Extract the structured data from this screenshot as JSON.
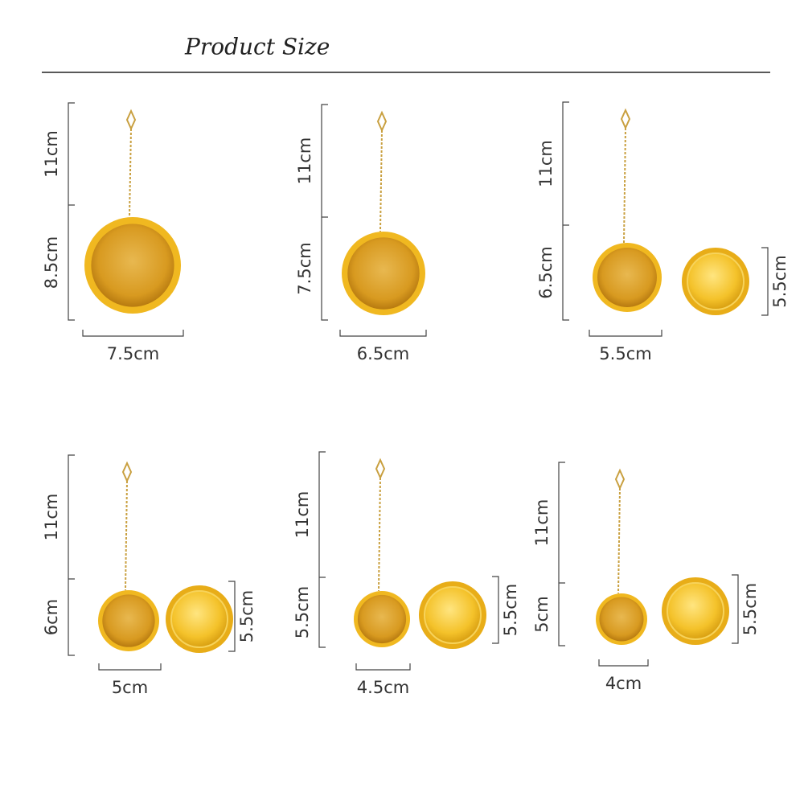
{
  "header": {
    "title": "Product Size"
  },
  "items": [
    {
      "chain": "11cm",
      "height": "8.5cm",
      "width": "7.5cm"
    },
    {
      "chain": "11cm",
      "height": "7.5cm",
      "width": "6.5cm"
    },
    {
      "chain": "11cm",
      "height": "6.5cm",
      "width": "5.5cm",
      "lid": "5.5cm"
    },
    {
      "chain": "11cm",
      "height": "6cm",
      "width": "5cm",
      "lid": "5.5cm"
    },
    {
      "chain": "11cm",
      "height": "5.5cm",
      "width": "4.5cm",
      "lid": "5.5cm"
    },
    {
      "chain": "11cm",
      "height": "5cm",
      "width": "4cm",
      "lid": "5.5cm"
    }
  ]
}
